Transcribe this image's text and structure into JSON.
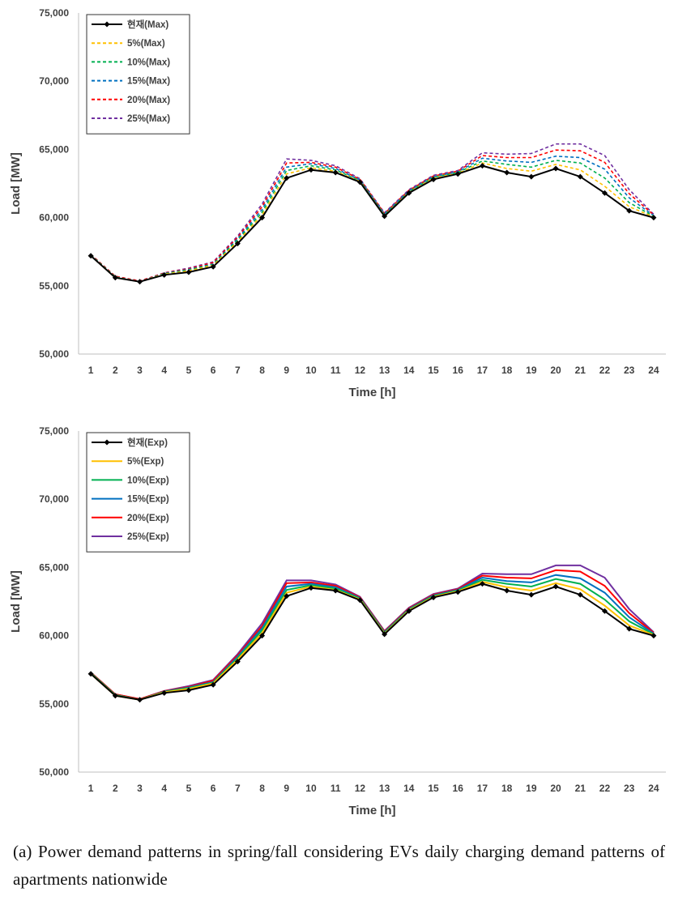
{
  "caption": "(a) Power demand patterns in spring/fall considering EVs daily charging demand patterns of apartments nationwide",
  "chart_data": [
    {
      "type": "line",
      "xlabel": "Time [h]",
      "ylabel": "Load [MW]",
      "ylim": [
        50000,
        75000
      ],
      "yticks": [
        "50,000",
        "55,000",
        "60,000",
        "65,000",
        "70,000",
        "75,000"
      ],
      "x": [
        1,
        2,
        3,
        4,
        5,
        6,
        7,
        8,
        9,
        10,
        11,
        12,
        13,
        14,
        15,
        16,
        17,
        18,
        19,
        20,
        21,
        22,
        23,
        24
      ],
      "grid": false,
      "legend_placement": "top-left",
      "series": [
        {
          "name": "현재(Max)",
          "color": "#000000",
          "dash": "solid",
          "marker": "diamond",
          "values": [
            57200,
            55600,
            55300,
            55800,
            56000,
            56400,
            58100,
            60000,
            62900,
            63500,
            63300,
            62600,
            60100,
            61800,
            62800,
            63200,
            63800,
            63300,
            63000,
            63600,
            63000,
            61800,
            60500,
            60000
          ]
        },
        {
          "name": "5%(Max)",
          "color": "#FFC000",
          "dash": "dashed",
          "marker": "none",
          "values": [
            57200,
            55600,
            55300,
            55850,
            56100,
            56500,
            58250,
            60200,
            63200,
            63650,
            63400,
            62650,
            60150,
            61850,
            62900,
            63250,
            64000,
            63600,
            63400,
            63900,
            63500,
            62300,
            60800,
            60050
          ]
        },
        {
          "name": "10%(Max)",
          "color": "#00B050",
          "dash": "dashed",
          "marker": "none",
          "values": [
            57250,
            55650,
            55300,
            55880,
            56150,
            56550,
            58350,
            60400,
            63450,
            63800,
            63500,
            62700,
            60200,
            61900,
            62950,
            63300,
            64150,
            63900,
            63700,
            64200,
            64000,
            62900,
            61100,
            60100
          ]
        },
        {
          "name": "15%(Max)",
          "color": "#0070C0",
          "dash": "dashed",
          "marker": "none",
          "values": [
            57250,
            55650,
            55300,
            55900,
            56200,
            56600,
            58450,
            60600,
            63700,
            63950,
            63600,
            62750,
            60250,
            61950,
            63000,
            63350,
            64350,
            64150,
            64050,
            64500,
            64400,
            63550,
            61450,
            60150
          ]
        },
        {
          "name": "20%(Max)",
          "color": "#FF0000",
          "dash": "dashed",
          "marker": "none",
          "values": [
            57300,
            55700,
            55350,
            55930,
            56250,
            56700,
            58550,
            60800,
            64000,
            64050,
            63700,
            62800,
            60300,
            62000,
            63050,
            63400,
            64550,
            64400,
            64400,
            64950,
            64900,
            64050,
            61750,
            60200
          ]
        },
        {
          "name": "25%(Max)",
          "color": "#7030A0",
          "dash": "dashed",
          "marker": "none",
          "values": [
            57300,
            55700,
            55350,
            55950,
            56300,
            56750,
            58650,
            61000,
            64300,
            64200,
            63800,
            62850,
            60350,
            62050,
            63100,
            63450,
            64750,
            64650,
            64700,
            65400,
            65400,
            64550,
            62050,
            60250
          ]
        }
      ]
    },
    {
      "type": "line",
      "xlabel": "Time [h]",
      "ylabel": "Load [MW]",
      "ylim": [
        50000,
        75000
      ],
      "yticks": [
        "50,000",
        "55,000",
        "60,000",
        "65,000",
        "70,000",
        "75,000"
      ],
      "x": [
        1,
        2,
        3,
        4,
        5,
        6,
        7,
        8,
        9,
        10,
        11,
        12,
        13,
        14,
        15,
        16,
        17,
        18,
        19,
        20,
        21,
        22,
        23,
        24
      ],
      "grid": false,
      "legend_placement": "top-left",
      "series": [
        {
          "name": "현재(Exp)",
          "color": "#000000",
          "dash": "solid",
          "marker": "diamond",
          "values": [
            57200,
            55600,
            55300,
            55800,
            56000,
            56400,
            58100,
            60000,
            62900,
            63500,
            63300,
            62600,
            60100,
            61800,
            62800,
            63200,
            63800,
            63300,
            63000,
            63600,
            63000,
            61800,
            60500,
            60000
          ]
        },
        {
          "name": "5%(Exp)",
          "color": "#FFC000",
          "dash": "solid",
          "marker": "none",
          "values": [
            57200,
            55600,
            55300,
            55850,
            56100,
            56500,
            58250,
            60200,
            63150,
            63600,
            63350,
            62650,
            60150,
            61850,
            62850,
            63250,
            63950,
            63550,
            63300,
            63850,
            63400,
            62200,
            60750,
            60050
          ]
        },
        {
          "name": "10%(Exp)",
          "color": "#00B050",
          "dash": "solid",
          "marker": "none",
          "values": [
            57250,
            55650,
            55300,
            55880,
            56150,
            56550,
            58350,
            60400,
            63350,
            63700,
            63450,
            62700,
            60200,
            61900,
            62900,
            63300,
            64100,
            63800,
            63600,
            64150,
            63800,
            62650,
            61050,
            60100
          ]
        },
        {
          "name": "15%(Exp)",
          "color": "#0070C0",
          "dash": "solid",
          "marker": "none",
          "values": [
            57250,
            55650,
            55300,
            55900,
            56200,
            56600,
            58450,
            60550,
            63600,
            63800,
            63550,
            62750,
            60250,
            61950,
            62950,
            63350,
            64250,
            64000,
            63900,
            64450,
            64200,
            63150,
            61350,
            60150
          ]
        },
        {
          "name": "20%(Exp)",
          "color": "#FF0000",
          "dash": "solid",
          "marker": "none",
          "values": [
            57300,
            55700,
            55350,
            55930,
            56250,
            56700,
            58550,
            60700,
            63850,
            63900,
            63650,
            62800,
            60300,
            62000,
            63000,
            63400,
            64400,
            64250,
            64200,
            64800,
            64700,
            63650,
            61650,
            60200
          ]
        },
        {
          "name": "25%(Exp)",
          "color": "#7030A0",
          "dash": "solid",
          "marker": "none",
          "values": [
            57300,
            55700,
            55350,
            55950,
            56300,
            56750,
            58650,
            60900,
            64050,
            64050,
            63750,
            62850,
            60350,
            62050,
            63050,
            63450,
            64550,
            64500,
            64500,
            65150,
            65150,
            64250,
            61950,
            60250
          ]
        }
      ]
    }
  ]
}
